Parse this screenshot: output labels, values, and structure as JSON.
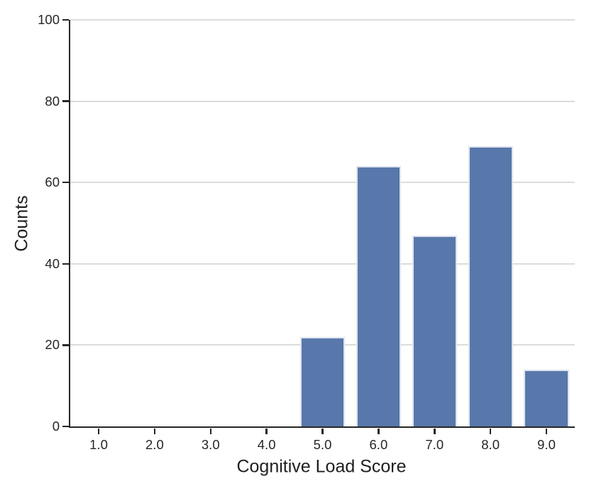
{
  "figure": {
    "background": "#ffffff"
  },
  "chart_data": {
    "type": "bar",
    "xlabel": "Cognitive Load Score",
    "ylabel": "Counts",
    "categories": [
      "1.0",
      "2.0",
      "3.0",
      "4.0",
      "5.0",
      "6.0",
      "7.0",
      "8.0",
      "9.0"
    ],
    "values": [
      0,
      0,
      0,
      0,
      22,
      64,
      47,
      69,
      14
    ],
    "ylim": [
      0,
      100
    ],
    "yticks": [
      0,
      20,
      40,
      60,
      80,
      100
    ],
    "grid": true,
    "legend_position": "none",
    "colors": {
      "bar": "#5878ab",
      "bar_edge": "#dee3ee",
      "grid": "#dcdcdc",
      "spine": "#262626",
      "text": "#262626"
    }
  }
}
